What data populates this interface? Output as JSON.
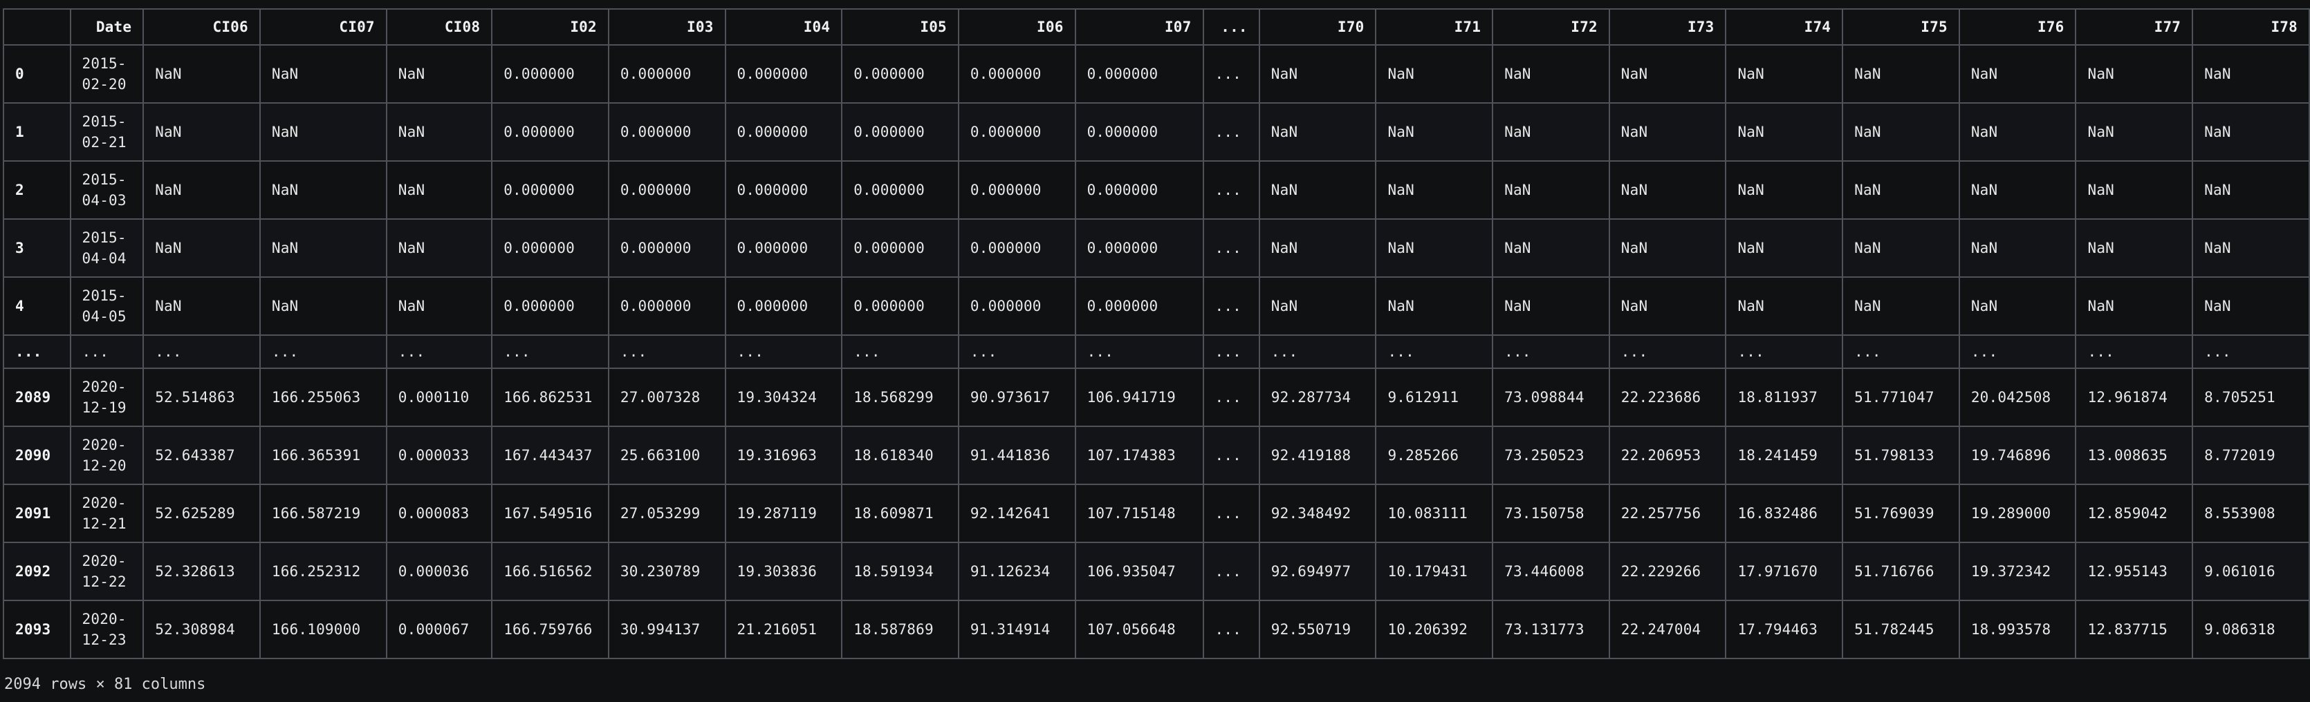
{
  "table": {
    "index_header": "",
    "columns": [
      "Date",
      "CI06",
      "CI07",
      "CI08",
      "I02",
      "I03",
      "I04",
      "I05",
      "I06",
      "I07",
      "...",
      "I70",
      "I71",
      "I72",
      "I73",
      "I74",
      "I75",
      "I76",
      "I77",
      "I78"
    ],
    "rows": [
      {
        "index": "0",
        "cells": [
          "2015-02-20",
          "NaN",
          "NaN",
          "NaN",
          "0.000000",
          "0.000000",
          "0.000000",
          "0.000000",
          "0.000000",
          "0.000000",
          "...",
          "NaN",
          "NaN",
          "NaN",
          "NaN",
          "NaN",
          "NaN",
          "NaN",
          "NaN",
          "NaN"
        ]
      },
      {
        "index": "1",
        "cells": [
          "2015-02-21",
          "NaN",
          "NaN",
          "NaN",
          "0.000000",
          "0.000000",
          "0.000000",
          "0.000000",
          "0.000000",
          "0.000000",
          "...",
          "NaN",
          "NaN",
          "NaN",
          "NaN",
          "NaN",
          "NaN",
          "NaN",
          "NaN",
          "NaN"
        ]
      },
      {
        "index": "2",
        "cells": [
          "2015-04-03",
          "NaN",
          "NaN",
          "NaN",
          "0.000000",
          "0.000000",
          "0.000000",
          "0.000000",
          "0.000000",
          "0.000000",
          "...",
          "NaN",
          "NaN",
          "NaN",
          "NaN",
          "NaN",
          "NaN",
          "NaN",
          "NaN",
          "NaN"
        ]
      },
      {
        "index": "3",
        "cells": [
          "2015-04-04",
          "NaN",
          "NaN",
          "NaN",
          "0.000000",
          "0.000000",
          "0.000000",
          "0.000000",
          "0.000000",
          "0.000000",
          "...",
          "NaN",
          "NaN",
          "NaN",
          "NaN",
          "NaN",
          "NaN",
          "NaN",
          "NaN",
          "NaN"
        ]
      },
      {
        "index": "4",
        "cells": [
          "2015-04-05",
          "NaN",
          "NaN",
          "NaN",
          "0.000000",
          "0.000000",
          "0.000000",
          "0.000000",
          "0.000000",
          "0.000000",
          "...",
          "NaN",
          "NaN",
          "NaN",
          "NaN",
          "NaN",
          "NaN",
          "NaN",
          "NaN",
          "NaN"
        ]
      },
      {
        "index": "...",
        "ellipsis": true,
        "cells": [
          "...",
          "...",
          "...",
          "...",
          "...",
          "...",
          "...",
          "...",
          "...",
          "...",
          "...",
          "...",
          "...",
          "...",
          "...",
          "...",
          "...",
          "...",
          "...",
          "..."
        ]
      },
      {
        "index": "2089",
        "cells": [
          "2020-12-19",
          "52.514863",
          "166.255063",
          "0.000110",
          "166.862531",
          "27.007328",
          "19.304324",
          "18.568299",
          "90.973617",
          "106.941719",
          "...",
          "92.287734",
          "9.612911",
          "73.098844",
          "22.223686",
          "18.811937",
          "51.771047",
          "20.042508",
          "12.961874",
          "8.705251"
        ]
      },
      {
        "index": "2090",
        "cells": [
          "2020-12-20",
          "52.643387",
          "166.365391",
          "0.000033",
          "167.443437",
          "25.663100",
          "19.316963",
          "18.618340",
          "91.441836",
          "107.174383",
          "...",
          "92.419188",
          "9.285266",
          "73.250523",
          "22.206953",
          "18.241459",
          "51.798133",
          "19.746896",
          "13.008635",
          "8.772019"
        ]
      },
      {
        "index": "2091",
        "cells": [
          "2020-12-21",
          "52.625289",
          "166.587219",
          "0.000083",
          "167.549516",
          "27.053299",
          "19.287119",
          "18.609871",
          "92.142641",
          "107.715148",
          "...",
          "92.348492",
          "10.083111",
          "73.150758",
          "22.257756",
          "16.832486",
          "51.769039",
          "19.289000",
          "12.859042",
          "8.553908"
        ]
      },
      {
        "index": "2092",
        "cells": [
          "2020-12-22",
          "52.328613",
          "166.252312",
          "0.000036",
          "166.516562",
          "30.230789",
          "19.303836",
          "18.591934",
          "91.126234",
          "106.935047",
          "...",
          "92.694977",
          "10.179431",
          "73.446008",
          "22.229266",
          "17.971670",
          "51.716766",
          "19.372342",
          "12.955143",
          "9.061016"
        ]
      },
      {
        "index": "2093",
        "cells": [
          "2020-12-23",
          "52.308984",
          "166.109000",
          "0.000067",
          "166.759766",
          "30.994137",
          "21.216051",
          "18.587869",
          "91.314914",
          "107.056648",
          "...",
          "92.550719",
          "10.206392",
          "73.131773",
          "22.247004",
          "17.794463",
          "51.782445",
          "18.993578",
          "12.837715",
          "9.086318"
        ]
      }
    ]
  },
  "footer": "2094 rows × 81 columns",
  "colors": {
    "background": "#0f1113",
    "border": "#4d5358",
    "text": "#e8e8e8"
  }
}
